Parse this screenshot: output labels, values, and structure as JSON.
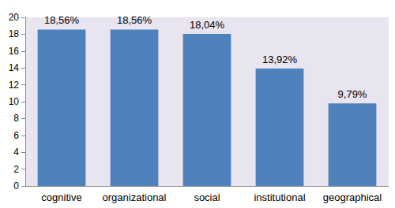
{
  "chart_data": {
    "type": "bar",
    "categories": [
      "cognitive",
      "organizational",
      "social",
      "institutional",
      "geographical"
    ],
    "values": [
      18.56,
      18.56,
      18.04,
      13.92,
      9.79
    ],
    "value_labels": [
      "18,56%",
      "18,56%",
      "18,04%",
      "13,92%",
      "9,79%"
    ],
    "data_labels": true,
    "color": "#4f81bd",
    "ylim": [
      0,
      20
    ],
    "yticks": [
      0,
      2,
      4,
      6,
      8,
      10,
      12,
      14,
      16,
      18,
      20
    ],
    "grid": false
  }
}
